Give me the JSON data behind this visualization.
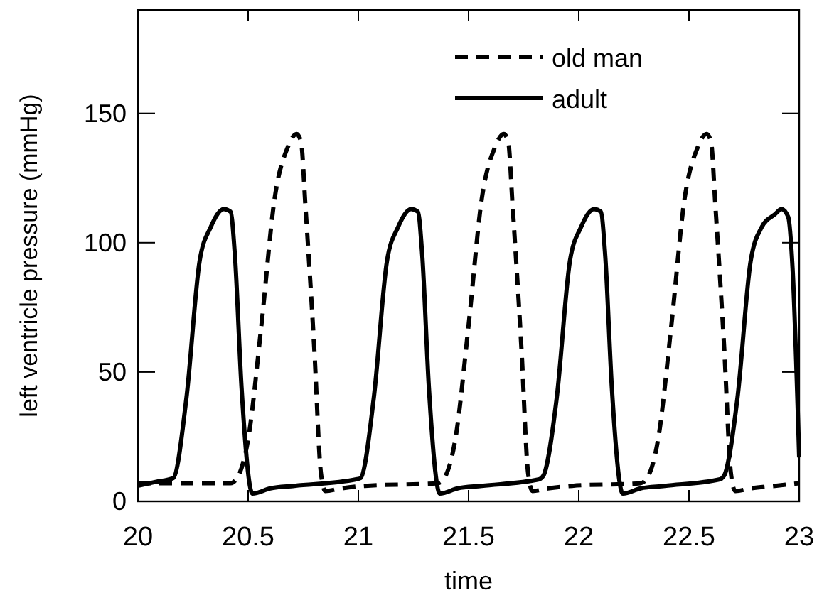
{
  "chart_data": {
    "type": "line",
    "xlabel": "time",
    "ylabel": "left ventricle pressure (mmHg)",
    "xlim": [
      20,
      23
    ],
    "xticks": [
      20,
      20.5,
      21,
      21.5,
      22,
      22.5,
      23
    ],
    "ylim": [
      0,
      190
    ],
    "yticks": [
      0,
      50,
      100,
      150
    ],
    "grid": false,
    "legend": "top right",
    "marker": "none",
    "series": [
      {
        "name": "old man",
        "color": "#000000",
        "line_style": "dashed",
        "x": [
          20,
          20.2,
          20.42,
          20.45,
          20.5,
          20.56,
          20.62,
          20.68,
          20.72,
          20.74,
          20.76,
          20.8,
          20.83,
          20.85,
          20.92,
          21.03,
          21.36,
          21.39,
          21.44,
          21.5,
          21.56,
          21.62,
          21.66,
          21.68,
          21.7,
          21.74,
          21.77,
          21.79,
          21.86,
          21.97,
          22.28,
          22.31,
          22.36,
          22.42,
          22.48,
          22.54,
          22.58,
          22.6,
          22.62,
          22.66,
          22.69,
          22.71,
          22.78,
          22.89,
          23
        ],
        "values": [
          7,
          7,
          7,
          9,
          24,
          68,
          117,
          137,
          142,
          139,
          114,
          59,
          11,
          4,
          5,
          6,
          7,
          9,
          24,
          68,
          117,
          137,
          142,
          139,
          114,
          59,
          11,
          4,
          5,
          6,
          7,
          9,
          24,
          68,
          117,
          137,
          142,
          139,
          114,
          59,
          11,
          4,
          5,
          6,
          7
        ]
      },
      {
        "name": "adult",
        "color": "#000000",
        "line_style": "solid",
        "x": [
          20,
          20.08,
          20.16,
          20.22,
          20.28,
          20.33,
          20.39,
          20.42,
          20.44,
          20.47,
          20.52,
          20.6,
          20.71,
          20.99,
          21.01,
          21.07,
          21.13,
          21.18,
          21.24,
          21.27,
          21.29,
          21.32,
          21.37,
          21.45,
          21.56,
          21.82,
          21.84,
          21.9,
          21.96,
          22.01,
          22.07,
          22.1,
          22.12,
          22.15,
          22.2,
          22.28,
          22.39,
          22.64,
          22.66,
          22.72,
          22.78,
          22.83,
          22.89,
          22.92,
          22.95,
          22.97,
          23
        ],
        "values": [
          6,
          7.5,
          9,
          40,
          93,
          106,
          113,
          112,
          95,
          44,
          3,
          5,
          6,
          8.5,
          9,
          40,
          93,
          106,
          113,
          112,
          95,
          44,
          3,
          5,
          6,
          8.5,
          10,
          40,
          93,
          106,
          113,
          112,
          95,
          44,
          3,
          5,
          6,
          8.5,
          10,
          40,
          93,
          106,
          111,
          113,
          110,
          90,
          17
        ]
      }
    ]
  }
}
